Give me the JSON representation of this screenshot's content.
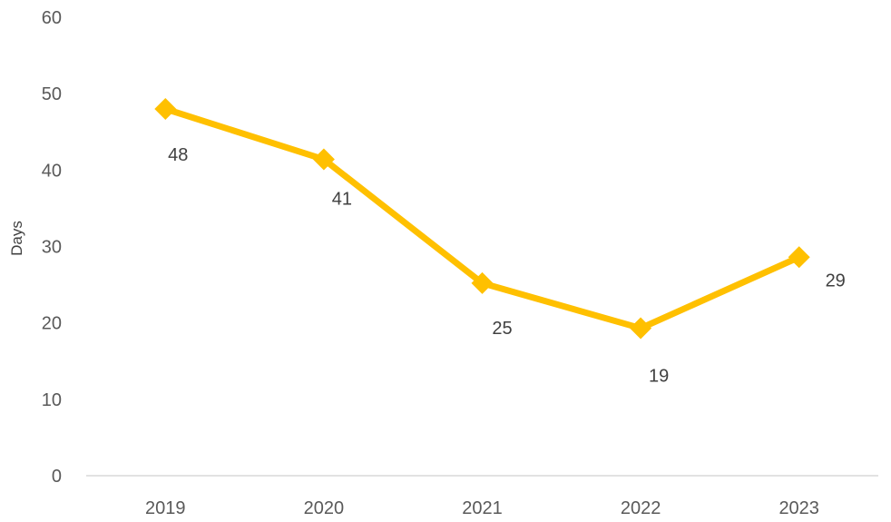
{
  "chart_data": {
    "type": "line",
    "categories": [
      "2019",
      "2020",
      "2021",
      "2022",
      "2023"
    ],
    "series": [
      {
        "values": [
          48,
          41.4,
          25.2,
          19.3,
          28.6
        ],
        "labels": [
          "48",
          "41",
          "25",
          "19",
          "29"
        ],
        "color": "#FFC000",
        "marker": "diamond"
      }
    ],
    "title": "",
    "xlabel": "",
    "ylabel": "Days",
    "ylim": [
      0,
      60
    ],
    "yticks": [
      "0",
      "10",
      "20",
      "30",
      "40",
      "50",
      "60"
    ],
    "grid": false,
    "legend": "none"
  }
}
